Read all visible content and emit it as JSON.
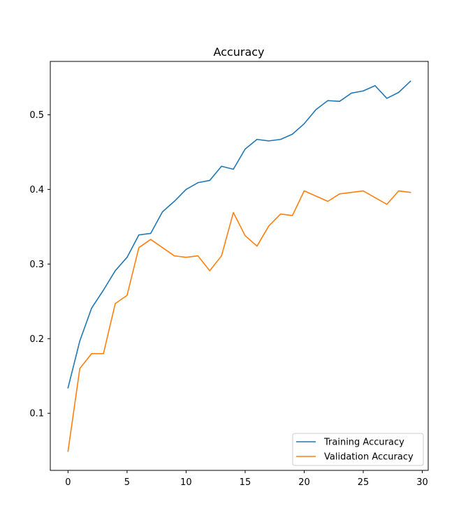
{
  "chart_data": {
    "type": "line",
    "title": "Accuracy",
    "xlabel": "",
    "ylabel": "",
    "xlim": [
      -1.5,
      30.5
    ],
    "ylim": [
      0.0235,
      0.5715
    ],
    "xticks": [
      0,
      5,
      10,
      15,
      20,
      25,
      30
    ],
    "yticks": [
      0.1,
      0.2,
      0.3,
      0.4,
      0.5
    ],
    "xtick_labels": [
      "0",
      "5",
      "10",
      "15",
      "20",
      "25",
      "30"
    ],
    "ytick_labels": [
      "0.1",
      "0.2",
      "0.3",
      "0.4",
      "0.5"
    ],
    "grid": false,
    "legend_position": "lower-right",
    "x": [
      0,
      1,
      2,
      3,
      4,
      5,
      6,
      7,
      8,
      9,
      10,
      11,
      12,
      13,
      14,
      15,
      16,
      17,
      18,
      19,
      20,
      21,
      22,
      23,
      24,
      25,
      26,
      27,
      28,
      29
    ],
    "series": [
      {
        "name": "Training Accuracy",
        "color": "#1f77b4",
        "values": [
          0.134,
          0.197,
          0.241,
          0.265,
          0.291,
          0.309,
          0.339,
          0.341,
          0.37,
          0.384,
          0.4,
          0.409,
          0.412,
          0.431,
          0.427,
          0.454,
          0.467,
          0.465,
          0.467,
          0.474,
          0.488,
          0.507,
          0.519,
          0.518,
          0.529,
          0.532,
          0.539,
          0.522,
          0.53,
          0.545
        ]
      },
      {
        "name": "Validation Accuracy",
        "color": "#ff7f0e",
        "values": [
          0.049,
          0.16,
          0.18,
          0.18,
          0.247,
          0.258,
          0.322,
          0.333,
          0.322,
          0.311,
          0.309,
          0.311,
          0.291,
          0.311,
          0.369,
          0.338,
          0.324,
          0.351,
          0.367,
          0.365,
          0.398,
          0.391,
          0.384,
          0.394,
          0.396,
          0.398,
          0.389,
          0.38,
          0.398,
          0.396
        ]
      }
    ]
  }
}
